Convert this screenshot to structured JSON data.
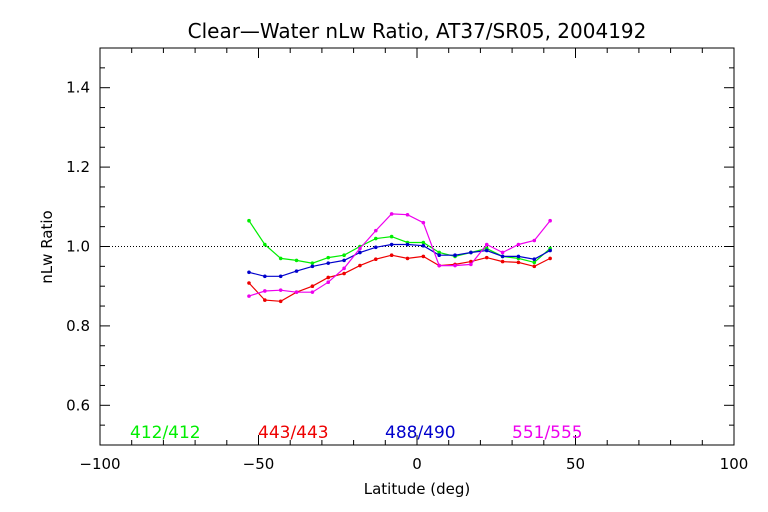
{
  "chart_data": {
    "type": "line",
    "title": "Clear—Water nLw Ratio, AT37/SR05, 2004192",
    "xlabel": "Latitude (deg)",
    "ylabel": "nLw Ratio",
    "xlim": [
      -100,
      100
    ],
    "ylim": [
      0.5,
      1.5
    ],
    "xticks": [
      -100,
      -50,
      0,
      50,
      100
    ],
    "xtick_labels": [
      "−100",
      "−50",
      "0",
      "50",
      "100"
    ],
    "yticks": [
      0.6,
      0.8,
      1.0,
      1.2,
      1.4
    ],
    "ytick_labels": [
      "0.6",
      "0.8",
      "1.0",
      "1.2",
      "1.4"
    ],
    "reference_line": 1.0,
    "grid": false,
    "legend_placement": "bottom, inside plot",
    "x": [
      -53,
      -48,
      -43,
      -38,
      -33,
      -28,
      -23,
      -18,
      -13,
      -8,
      -3,
      2,
      7,
      12,
      17,
      22,
      27,
      32,
      37,
      42
    ],
    "series": [
      {
        "name": "412/412",
        "color": "#00ee00",
        "values": [
          1.065,
          1.005,
          0.97,
          0.965,
          0.958,
          0.972,
          0.978,
          1.0,
          1.02,
          1.025,
          1.01,
          1.01,
          0.985,
          0.975,
          0.985,
          0.995,
          0.975,
          0.97,
          0.96,
          0.995
        ]
      },
      {
        "name": "443/443",
        "color": "#ee0000",
        "values": [
          0.908,
          0.865,
          0.862,
          0.885,
          0.9,
          0.922,
          0.932,
          0.952,
          0.968,
          0.978,
          0.97,
          0.975,
          0.952,
          0.955,
          0.962,
          0.972,
          0.962,
          0.96,
          0.95,
          0.97
        ]
      },
      {
        "name": "488/490",
        "color": "#0000cc",
        "values": [
          0.935,
          0.925,
          0.925,
          0.938,
          0.95,
          0.958,
          0.965,
          0.985,
          0.998,
          1.005,
          1.005,
          1.002,
          0.978,
          0.978,
          0.985,
          0.99,
          0.975,
          0.975,
          0.968,
          0.99
        ]
      },
      {
        "name": "551/555",
        "color": "#ee00ee",
        "values": [
          0.875,
          0.888,
          0.89,
          0.885,
          0.885,
          0.91,
          0.945,
          0.995,
          1.04,
          1.082,
          1.08,
          1.06,
          0.952,
          0.952,
          0.955,
          1.005,
          0.985,
          1.005,
          1.015,
          1.065
        ]
      }
    ]
  }
}
